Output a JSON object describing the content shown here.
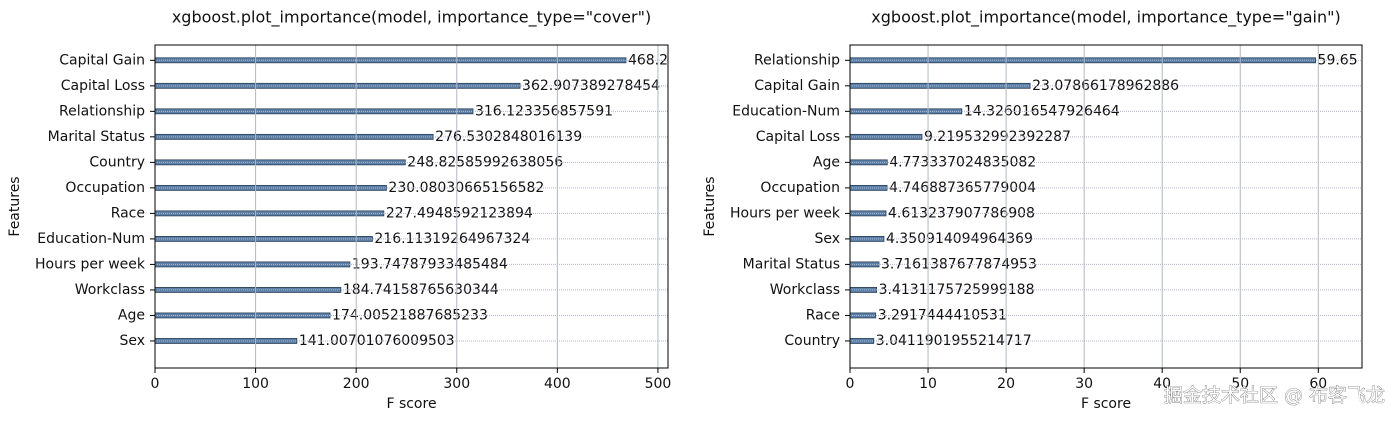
{
  "chart_data": [
    {
      "type": "bar",
      "orientation": "horizontal",
      "title": "xgboost.plot_importance(model, importance_type=\"cover\")",
      "xlabel": "F score",
      "ylabel": "Features",
      "categories": [
        "Capital Gain",
        "Capital Loss",
        "Relationship",
        "Marital Status",
        "Country",
        "Occupation",
        "Race",
        "Education-Num",
        "Hours per week",
        "Workclass",
        "Age",
        "Sex"
      ],
      "values": [
        468.2,
        362.907389278454,
        316.123356857591,
        276.5302848016139,
        248.82585992638056,
        230.08030665156582,
        227.4948592123894,
        216.11319264967324,
        193.74787933485484,
        184.74158765630344,
        174.00521887685233,
        141.00701076009503
      ],
      "xlim": [
        0,
        510
      ],
      "xticks": [
        0,
        100,
        200,
        300,
        400,
        500
      ],
      "grid": true,
      "color": "#5a7fa8"
    },
    {
      "type": "bar",
      "orientation": "horizontal",
      "title": "xgboost.plot_importance(model, importance_type=\"gain\")",
      "xlabel": "F score",
      "ylabel": "Features",
      "categories": [
        "Relationship",
        "Capital Gain",
        "Education-Num",
        "Capital Loss",
        "Age",
        "Occupation",
        "Hours per week",
        "Sex",
        "Marital Status",
        "Workclass",
        "Race",
        "Country"
      ],
      "values": [
        59.65,
        23.07866178962886,
        14.326016547926464,
        9.219532992392287,
        4.773337024835082,
        4.746887365779004,
        4.613237907786908,
        4.350914094964369,
        3.7161387677874953,
        3.4131175725999188,
        3.2917444410531,
        3.0411901955214717
      ],
      "xlim": [
        0,
        65.6
      ],
      "xticks": [
        0,
        10,
        20,
        30,
        40,
        50,
        60
      ],
      "grid": true,
      "color": "#5a7fa8"
    }
  ],
  "watermark": "掘金技术社区 @ 布客飞龙"
}
